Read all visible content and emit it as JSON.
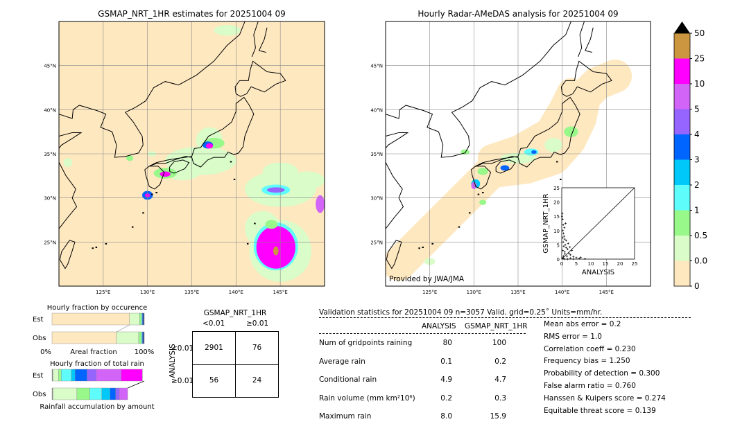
{
  "colors": {
    "levels": [
      "#fee8c0",
      "#d9fcc8",
      "#98f88a",
      "#5ffcfc",
      "#00c8f8",
      "#0064ff",
      "#9664ff",
      "#d264f8",
      "#ff00ff",
      "#cc9640"
    ],
    "over": "#000000",
    "land_outline": "#000000",
    "grid": "#888888"
  },
  "chart_data": [
    {
      "type": "heatmap",
      "title": "GSMAP_NRT_1HR estimates for 20251004 09",
      "xticks": [
        "125°E",
        "130°E",
        "135°E",
        "140°E",
        "145°E"
      ],
      "yticks": [
        "45°N",
        "40°N",
        "35°N",
        "30°N",
        "25°N"
      ],
      "xlim": [
        120,
        150
      ],
      "ylim": [
        20,
        50
      ]
    },
    {
      "type": "heatmap",
      "title": "Hourly Radar-AMeDAS analysis for 20251004 09",
      "xticks": [
        "125°E",
        "130°E",
        "135°E",
        "140°E",
        "145°E"
      ],
      "yticks": [
        "45°N",
        "40°N",
        "35°N",
        "30°N",
        "25°N"
      ],
      "xlim": [
        120,
        150
      ],
      "ylim": [
        20,
        50
      ],
      "annotation": "Provided by JWA/JMA"
    },
    {
      "type": "colorbar",
      "ticks": [
        "0",
        "0.01",
        "0.5",
        "1",
        "2",
        "3",
        "4",
        "5",
        "10",
        "25",
        "50"
      ],
      "extend": "max"
    },
    {
      "type": "scatter",
      "xlabel": "ANALYSIS",
      "ylabel": "GSMAP_NRT_1HR",
      "xlim": [
        0,
        25
      ],
      "ylim": [
        0,
        25
      ],
      "xticks": [
        "0",
        "5",
        "10",
        "15",
        "20",
        "25"
      ],
      "yticks": [
        "0",
        "5",
        "10",
        "15",
        "20",
        "25"
      ],
      "points": [
        [
          0.2,
          16
        ],
        [
          0.3,
          14
        ],
        [
          0.5,
          12
        ],
        [
          0.4,
          10
        ],
        [
          0.6,
          9
        ],
        [
          0.8,
          8
        ],
        [
          1,
          7
        ],
        [
          0.3,
          7.5
        ],
        [
          0.5,
          6
        ],
        [
          1.2,
          5
        ],
        [
          0.7,
          4.5
        ],
        [
          1.5,
          4
        ],
        [
          2,
          3.5
        ],
        [
          0.4,
          3
        ],
        [
          1,
          2.5
        ],
        [
          2.5,
          2
        ],
        [
          3,
          1.5
        ],
        [
          0.6,
          1
        ],
        [
          1.8,
          1
        ],
        [
          4,
          0.8
        ],
        [
          5,
          0.5
        ],
        [
          0.2,
          0.4
        ],
        [
          3,
          0.3
        ],
        [
          6,
          0.2
        ],
        [
          8,
          0.1
        ],
        [
          2,
          0
        ],
        [
          4,
          0
        ],
        [
          1,
          0
        ],
        [
          0.5,
          0.2
        ],
        [
          1.5,
          6.5
        ],
        [
          2.2,
          5.5
        ],
        [
          3.5,
          3
        ],
        [
          0.9,
          11
        ],
        [
          1.3,
          12.5
        ],
        [
          0.1,
          15
        ],
        [
          2.8,
          4.2
        ],
        [
          1.1,
          1.8
        ],
        [
          6.5,
          0.6
        ]
      ]
    },
    {
      "type": "bar",
      "title": "Hourly fraction by occurence",
      "xlabel": "Areal fraction",
      "xticks": [
        "0%",
        "100%"
      ],
      "categories": [
        "Est",
        "Obs"
      ],
      "series": [
        {
          "category": "Est",
          "fractions": [
            0.84,
            0.11,
            0.02,
            0.01,
            0.01,
            0.01
          ]
        },
        {
          "category": "Obs",
          "fractions": [
            0.7,
            0.24,
            0.03,
            0.01,
            0.01,
            0.01
          ]
        }
      ]
    },
    {
      "type": "bar",
      "title": "Hourly fraction of total rain",
      "xlabel": "Rainfall accumulation by amount",
      "categories": [
        "Est",
        "Obs"
      ],
      "series": [
        {
          "category": "Est",
          "fractions": [
            0.01,
            0.06,
            0.03,
            0.11,
            0.04,
            0.13,
            0.1,
            0.27,
            0.23
          ]
        },
        {
          "category": "Obs",
          "fractions": [
            0.01,
            0.26,
            0.14,
            0.13,
            0.09,
            0.06,
            0.04,
            0.09
          ]
        }
      ]
    },
    {
      "type": "table",
      "title": "GSMAP_NRT_1HR",
      "col_headers": [
        "<0.01",
        "≥0.01"
      ],
      "row_label": "ANALYSIS",
      "row_headers": [
        "<0.01",
        "≥0.01"
      ],
      "cells": [
        [
          "2901",
          "76"
        ],
        [
          "56",
          "24"
        ]
      ]
    }
  ],
  "stats": {
    "header": "Validation statistics for 20251004 09  n=3057 Valid. grid=0.25˚ Units=mm/hr.",
    "col_headers": [
      "ANALYSIS",
      "GSMAP_NRT_1HR"
    ],
    "rows": [
      {
        "label": "Num of gridpoints raining",
        "a": "80",
        "g": "100"
      },
      {
        "label": "Average rain",
        "a": "0.1",
        "g": "0.2"
      },
      {
        "label": "Conditional rain",
        "a": "4.9",
        "g": "4.7"
      },
      {
        "label": "Rain volume (mm km²10⁶)",
        "a": "0.2",
        "g": "0.3"
      },
      {
        "label": "Maximum rain",
        "a": "8.0",
        "g": "15.9"
      }
    ],
    "scores": [
      "Mean abs error =    0.2",
      "RMS error =    1.0",
      "Correlation coeff =  0.230",
      "Frequency bias =  1.250",
      "Probability of detection =  0.300",
      "False alarm ratio =  0.760",
      "Hanssen & Kuipers score =  0.274",
      "Equitable threat score =  0.139"
    ]
  }
}
